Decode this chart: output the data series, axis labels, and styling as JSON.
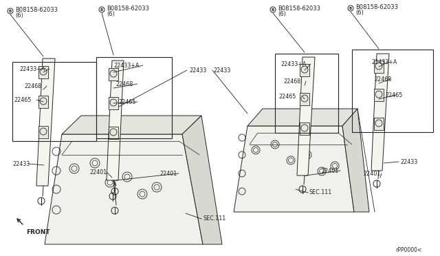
{
  "bg_color": "#ffffff",
  "line_color": "#222222",
  "text_color": "#222222",
  "part_number_bolt": "B08158-62033",
  "bolt_qty": "(6)",
  "part_22433": "22433",
  "part_22433A": "22433+A",
  "part_22468": "22468",
  "part_22465": "22465",
  "part_22401": "22401",
  "part_sec111": "SEC.111",
  "part_rpp": "rPP0000<",
  "front_label": "FRONT",
  "font_size": 6.0
}
